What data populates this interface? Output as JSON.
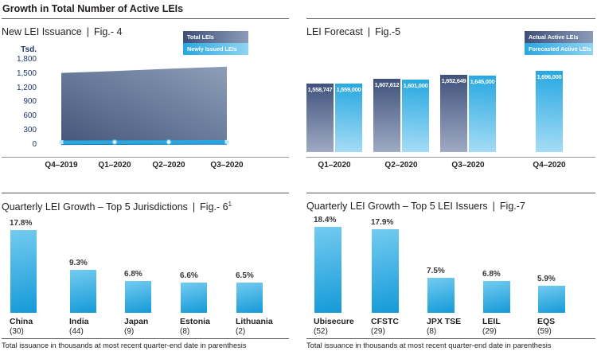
{
  "separator": "|",
  "header": {
    "title": "Growth in Total Number of Active LEIs"
  },
  "colors": {
    "accent_blue": "#29a8e0",
    "dark_blue_gradient_start": "#3d4f78",
    "dark_blue_gradient_end": "#9fabc4",
    "navy_text": "#1c3668",
    "text": "#231f20"
  },
  "chart_data": [
    {
      "id": "fig4",
      "type": "area",
      "title": "New LEI Issuance",
      "fig": "Fig.- 4",
      "ylabel": "Tsd.",
      "ylim": [
        0,
        1800
      ],
      "yticks": [
        "1,800",
        "1,500",
        "1,200",
        "900",
        "600",
        "300",
        "0"
      ],
      "x": [
        "Q4–2019",
        "Q1–2020",
        "Q2–2020",
        "Q3–2020"
      ],
      "legend_position": "top-right",
      "grid": false,
      "series": [
        {
          "name": "Total LEIs",
          "values": [
            1520,
            1559,
            1608,
            1653
          ],
          "color_start": "#45567b",
          "color_end": "#8d9eb9"
        },
        {
          "name": "Newly Issued LEIs",
          "values": [
            38,
            40,
            42,
            45
          ],
          "color": "#29a8e0"
        }
      ]
    },
    {
      "id": "fig5",
      "type": "bar",
      "title": "LEI Forecast",
      "fig": "Fig.-5",
      "categories": [
        "Q1–2020",
        "Q2–2020",
        "Q3–2020",
        "Q4–2020"
      ],
      "legend_position": "top-right",
      "grid": false,
      "series": [
        {
          "name": "Actual Active LEIs",
          "values": [
            1558747,
            1607612,
            1652649,
            null
          ],
          "labels": [
            "1,558,747",
            "1,607,612",
            "1,652,649",
            null
          ]
        },
        {
          "name": "Forecasted Active LEIs",
          "values": [
            1559000,
            1601000,
            1645000,
            1696000
          ],
          "labels": [
            "1,559,000",
            "1,601,000",
            "1,645,000",
            "1,696,000"
          ]
        }
      ]
    },
    {
      "id": "fig6",
      "type": "bar",
      "title": "Quarterly LEI Growth – Top 5 Jurisdictions",
      "fig": "Fig.- 6",
      "fig_superscript": "1",
      "categories": [
        "China",
        "India",
        "Japan",
        "Estonia",
        "Lithuania"
      ],
      "category_counts": [
        "(30)",
        "(44)",
        "(9)",
        "(8)",
        "(2)"
      ],
      "values": [
        17.8,
        9.3,
        6.8,
        6.6,
        6.5
      ],
      "value_labels": [
        "17.8%",
        "9.3%",
        "6.8%",
        "6.6%",
        "6.5%"
      ],
      "footnote": "Total issuance in thousands at most recent quarter-end date in parenthesis"
    },
    {
      "id": "fig7",
      "type": "bar",
      "title": "Quarterly LEI Growth – Top 5 LEI Issuers",
      "fig": "Fig.-7",
      "categories": [
        "Ubisecure",
        "CFSTC",
        "JPX TSE",
        "LEIL",
        "EQS"
      ],
      "category_counts": [
        "(52)",
        "(29)",
        "(8)",
        "(29)",
        "(59)"
      ],
      "values": [
        18.4,
        17.9,
        7.5,
        6.8,
        5.9
      ],
      "value_labels": [
        "18.4%",
        "17.9%",
        "7.5%",
        "6.8%",
        "5.9%"
      ],
      "footnote": "Total issuance in thousands at most recent quarter-end date in parenthesis"
    }
  ]
}
